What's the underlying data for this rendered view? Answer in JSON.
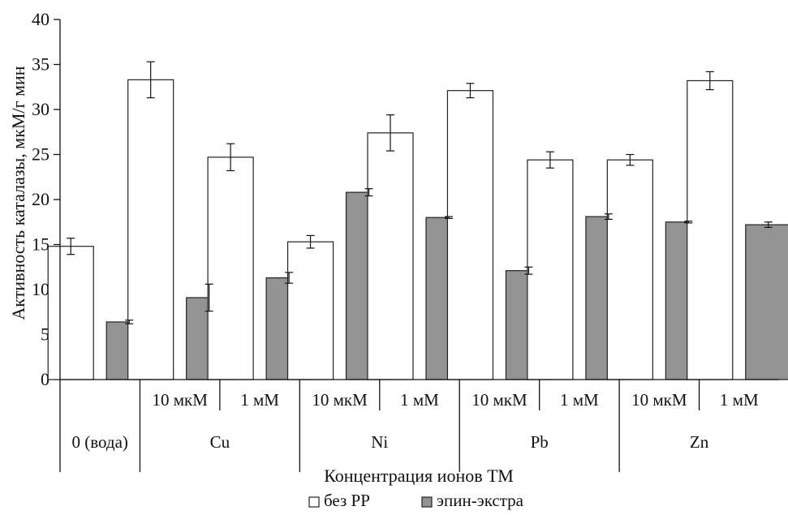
{
  "chart_data": {
    "type": "bar",
    "title": "",
    "xlabel": "Концентрация ионов ТМ",
    "ylabel": "Активность каталазы, мкМ/г мин",
    "ylim": [
      0,
      40
    ],
    "yticks": [
      0,
      5,
      10,
      15,
      20,
      25,
      30,
      35,
      40
    ],
    "grid": false,
    "legend_position": "bottom",
    "groups": [
      {
        "label": "0 (вода)",
        "subcategories": [
          ""
        ]
      },
      {
        "label": "Cu",
        "subcategories": [
          "10 мкМ",
          "1 мМ"
        ]
      },
      {
        "label": "Ni",
        "subcategories": [
          "10 мкМ",
          "1 мМ"
        ]
      },
      {
        "label": "Pb",
        "subcategories": [
          "10 мкМ",
          "1 мМ"
        ]
      },
      {
        "label": "Zn",
        "subcategories": [
          "10 мкМ",
          "1 мМ"
        ]
      }
    ],
    "series": [
      {
        "name": "без РР",
        "color": "#ffffff",
        "values": [
          14.8,
          33.3,
          24.7,
          15.3,
          27.4,
          32.1,
          24.4,
          24.4,
          33.2
        ],
        "errors": [
          0.9,
          2.0,
          1.5,
          0.7,
          2.0,
          0.8,
          0.9,
          0.6,
          1.0
        ]
      },
      {
        "name": "эпин-экстра",
        "color": "#939393",
        "values": [
          6.4,
          9.1,
          11.3,
          20.8,
          18.0,
          12.1,
          18.1,
          17.5,
          17.2
        ],
        "errors": [
          0.2,
          1.5,
          0.6,
          0.4,
          0.1,
          0.4,
          0.3,
          0.1,
          0.3
        ]
      }
    ]
  }
}
